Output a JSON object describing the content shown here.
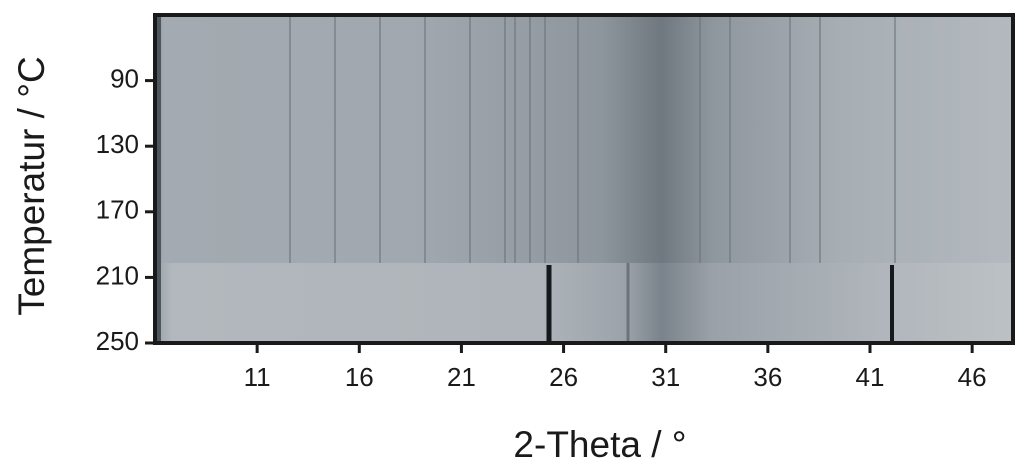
{
  "chart_data": {
    "type": "heatmap",
    "xlabel": "2-Theta / °",
    "ylabel": "Temperatur / °C",
    "xlim": [
      6,
      48
    ],
    "xticks": [
      11,
      16,
      21,
      26,
      31,
      36,
      41,
      46
    ],
    "ylim": [
      250,
      50
    ],
    "yticks": [
      90,
      130,
      170,
      210,
      250
    ]
  }
}
